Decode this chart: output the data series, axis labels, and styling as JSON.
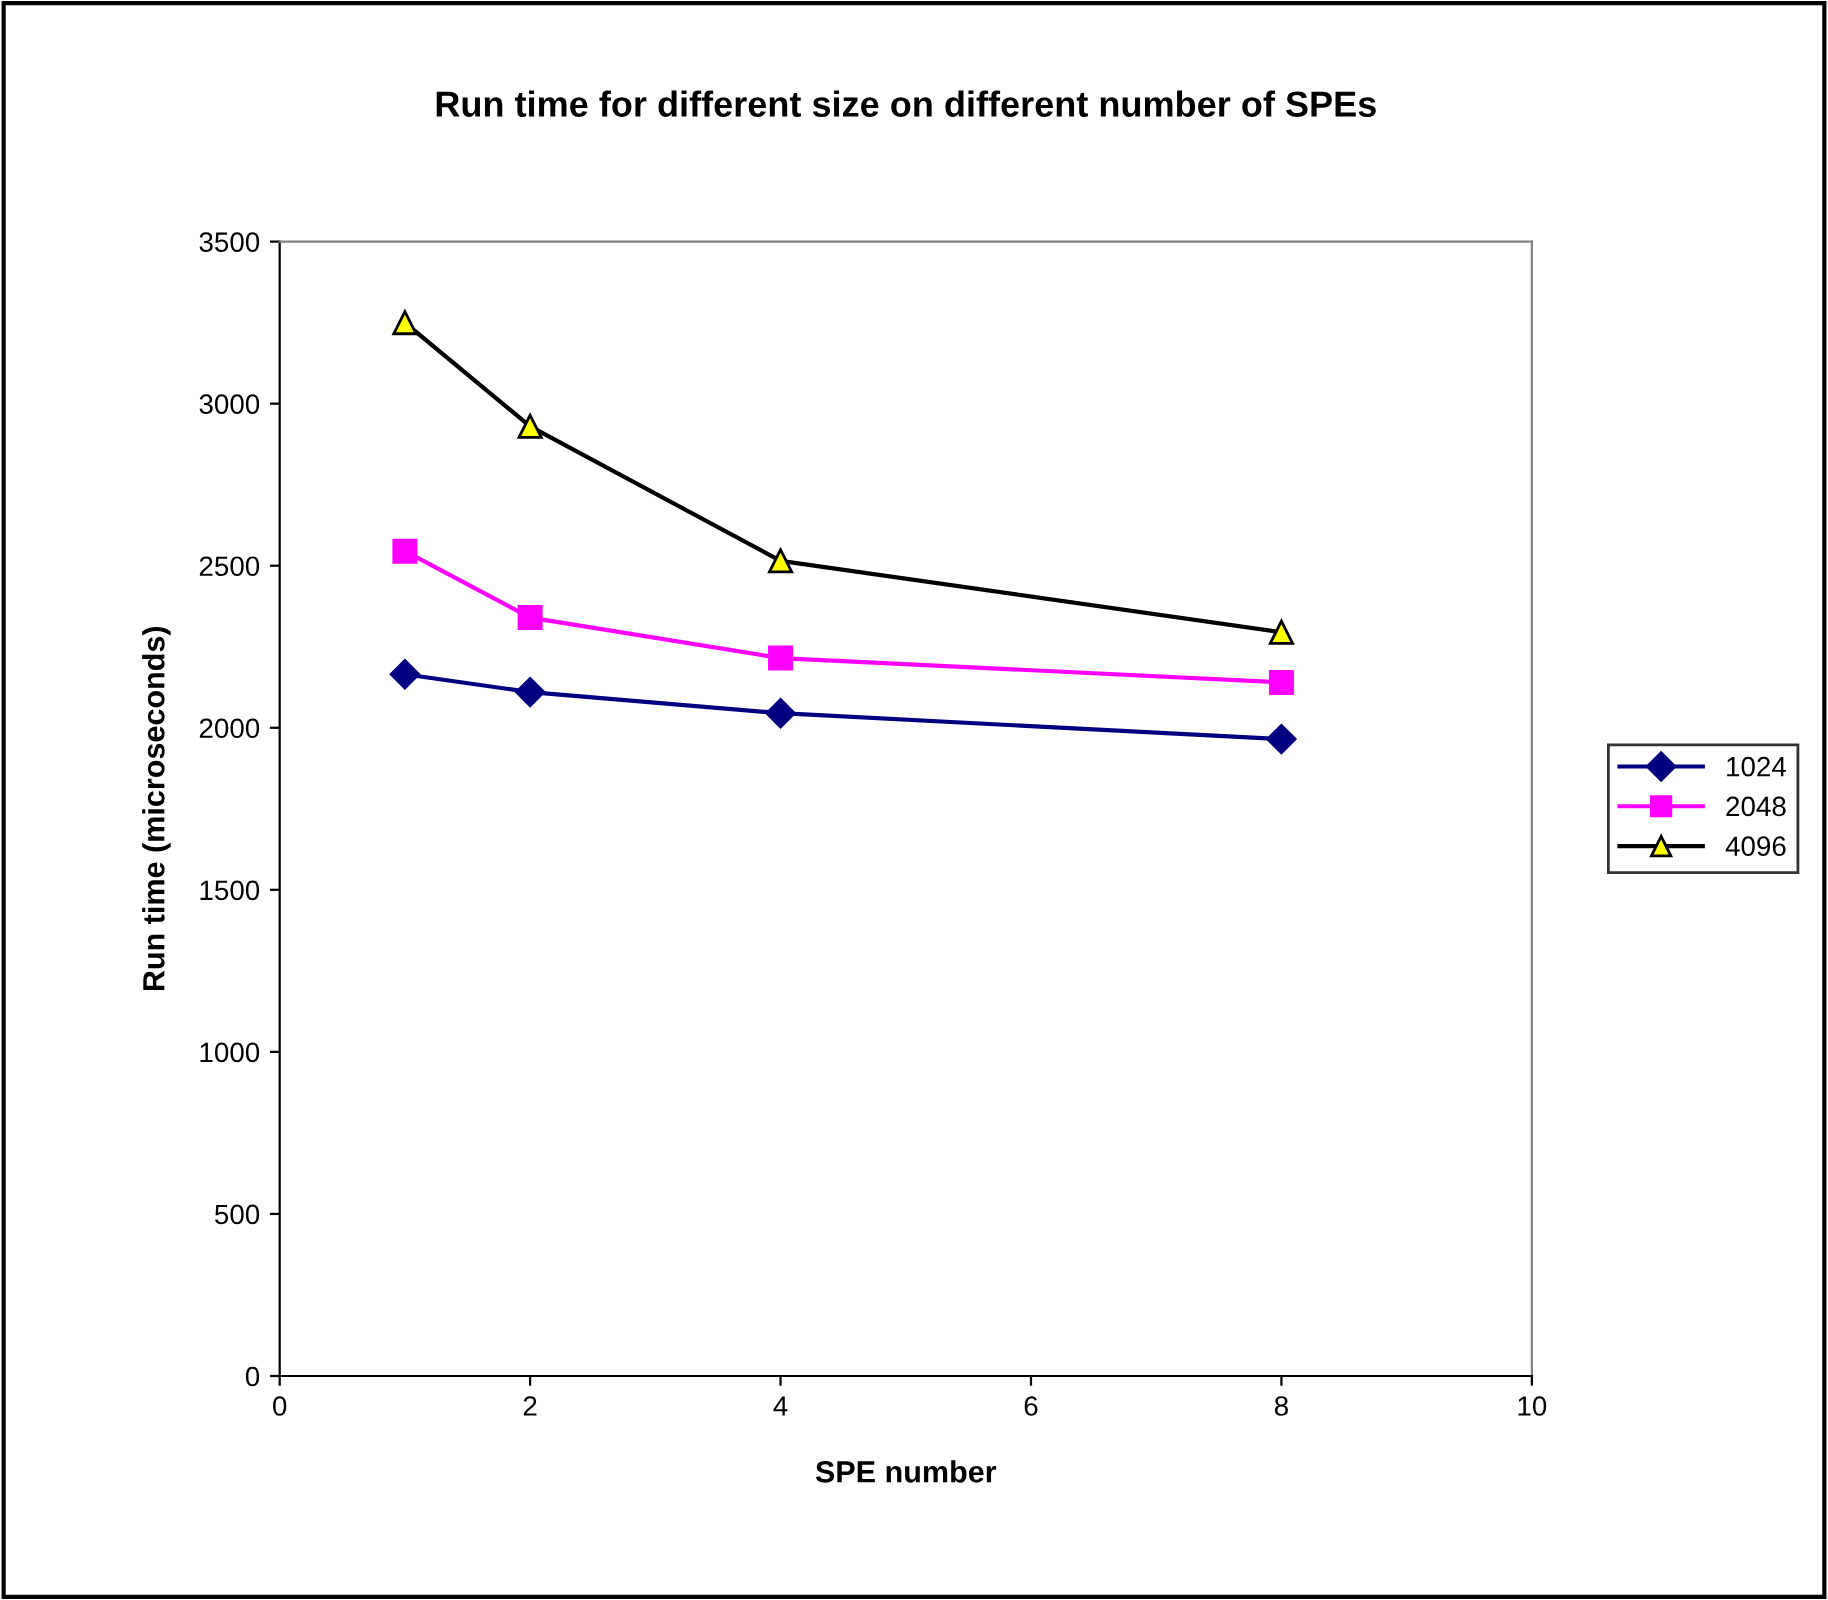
{
  "chart_data": {
    "type": "line",
    "title": "Run time for different size on different number of SPEs",
    "xlabel": "SPE number",
    "ylabel": "Run time (microseconds)",
    "x": [
      1,
      2,
      4,
      8
    ],
    "series": [
      {
        "name": "1024",
        "color": "#000080",
        "marker": "diamond",
        "values": [
          2165,
          2110,
          2045,
          1965
        ]
      },
      {
        "name": "2048",
        "color": "#ff00ff",
        "marker": "square",
        "values": [
          2545,
          2340,
          2215,
          2140
        ]
      },
      {
        "name": "4096",
        "color": "#000000",
        "marker": "triangle",
        "values": [
          3250,
          2930,
          2515,
          2295
        ]
      }
    ],
    "xlim": [
      0,
      10
    ],
    "xticks": [
      0,
      2,
      4,
      6,
      8,
      10
    ],
    "ylim": [
      0,
      3500
    ],
    "yticks": [
      0,
      500,
      1000,
      1500,
      2000,
      2500,
      3000,
      3500
    ],
    "grid": false,
    "legend": "right",
    "line_style": "solid"
  }
}
